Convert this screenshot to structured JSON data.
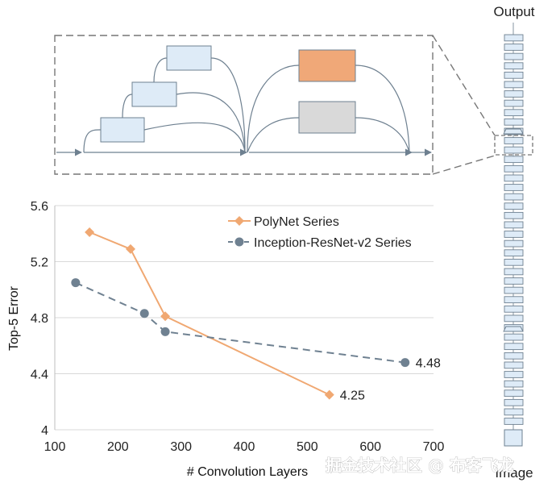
{
  "chart_data": {
    "type": "line",
    "xlabel": "# Convolution Layers",
    "ylabel": "Top-5 Error",
    "xlim": [
      100,
      700
    ],
    "ylim": [
      4,
      5.6
    ],
    "x_ticks": [
      "100",
      "200",
      "300",
      "400",
      "500",
      "600",
      "700"
    ],
    "y_ticks": [
      "4",
      "4.4",
      "4.8",
      "5.2",
      "5.6"
    ],
    "grid": "horizontal",
    "legend_position": "top-right",
    "series": [
      {
        "name": "PolyNet Series",
        "color": "#f0a872",
        "line_style": "solid",
        "marker": "diamond",
        "x": [
          155,
          220,
          275,
          535
        ],
        "y": [
          5.41,
          5.29,
          4.81,
          4.25
        ],
        "end_label": "4.25"
      },
      {
        "name": "Inception-ResNet-v2 Series",
        "color": "#6f8191",
        "line_style": "dashed",
        "marker": "circle",
        "x": [
          133,
          242,
          275,
          655
        ],
        "y": [
          5.05,
          4.83,
          4.7,
          4.48
        ],
        "end_label": "4.48"
      }
    ]
  },
  "diagram": {
    "tower_top_label": "Output",
    "tower_bottom_label": "Image"
  },
  "watermark": "掘金技术社区 @ 布客飞龙"
}
